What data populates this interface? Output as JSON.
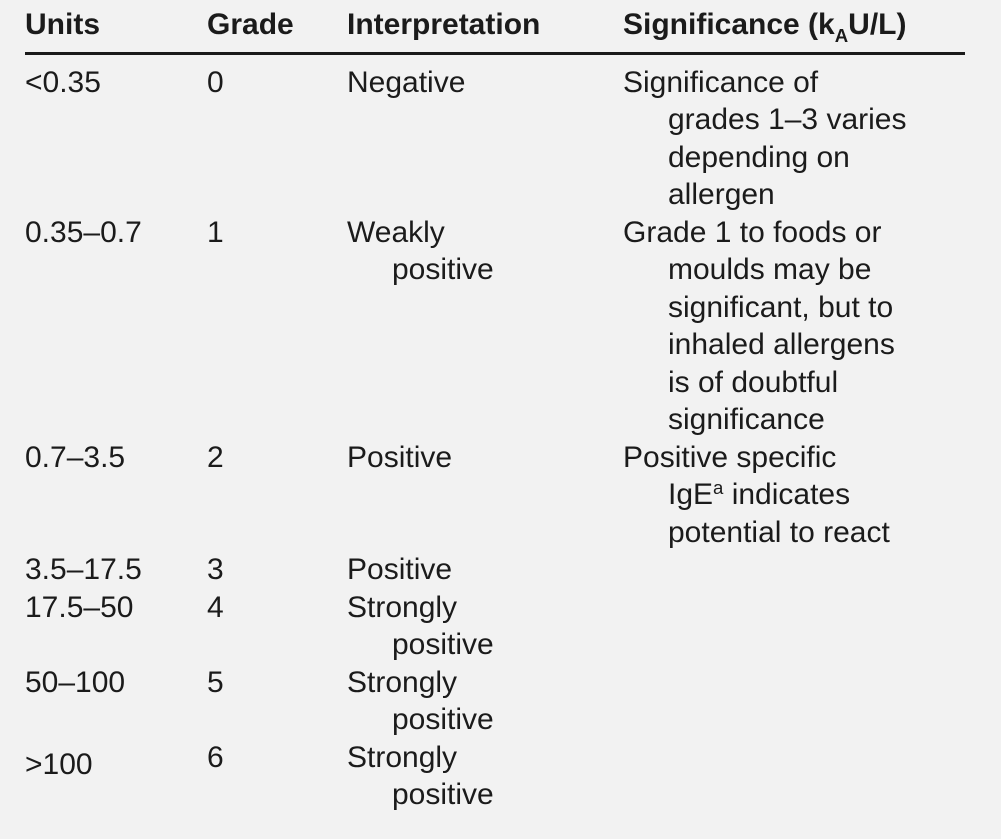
{
  "page": {
    "background_color": "#f2f2f2",
    "text_color": "#1b1b1b",
    "rule_color": "#1b1b1b"
  },
  "table": {
    "columns": [
      {
        "key": "units",
        "label": "Units"
      },
      {
        "key": "grade",
        "label": "Grade"
      },
      {
        "key": "interpretation",
        "label": "Interpretation"
      },
      {
        "key": "significance",
        "label": "Significance (k_{A}U/L)"
      }
    ],
    "rows": [
      {
        "units": [
          "<0.35"
        ],
        "grade": [
          "0"
        ],
        "interpretation": [
          "Negative"
        ],
        "significance": [
          "Significance of",
          "grades 1–3 varies",
          "depending on",
          "allergen"
        ]
      },
      {
        "units": [
          "0.35–0.7"
        ],
        "grade": [
          "1"
        ],
        "interpretation": [
          "Weakly",
          "positive"
        ],
        "significance": [
          "Grade 1 to foods or",
          "moulds may be",
          "significant, but to",
          "inhaled allergens",
          "is of doubtful",
          "significance"
        ]
      },
      {
        "units": [
          "0.7–3.5"
        ],
        "grade": [
          "2"
        ],
        "interpretation": [
          "Positive"
        ],
        "significance": [
          "Positive specific",
          "IgE^{a} indicates",
          "potential to react"
        ]
      },
      {
        "units": [
          "3.5–17.5"
        ],
        "grade": [
          "3"
        ],
        "interpretation": [
          "Positive"
        ],
        "significance": []
      },
      {
        "units": [
          "17.5–50"
        ],
        "grade": [
          "4"
        ],
        "interpretation": [
          "Strongly",
          "positive"
        ],
        "significance": []
      },
      {
        "units": [
          "50–100"
        ],
        "grade": [
          "5"
        ],
        "interpretation": [
          "Strongly",
          "positive"
        ],
        "significance": []
      },
      {
        "units": [
          ">100"
        ],
        "grade": [
          "6"
        ],
        "interpretation": [
          "Strongly",
          "positive"
        ],
        "significance": []
      }
    ]
  }
}
